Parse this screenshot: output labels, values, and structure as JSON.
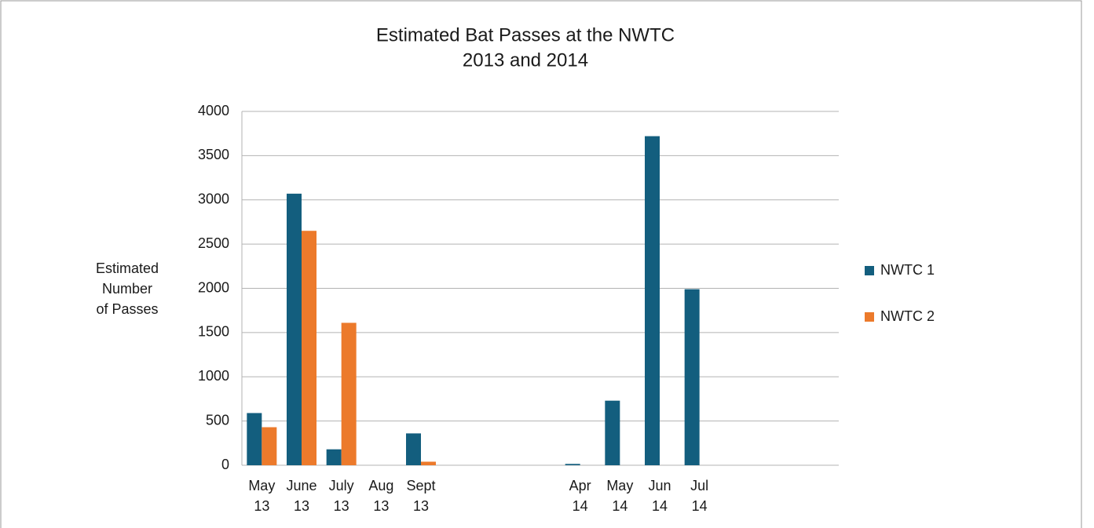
{
  "chart_data": {
    "type": "bar",
    "title": [
      "Estimated Bat Passes at the NWTC",
      "2013 and 2014"
    ],
    "y_label": [
      "Estimated",
      "Number",
      "of Passes"
    ],
    "categories": [
      "May 13",
      "June 13",
      "July 13",
      "Aug 13",
      "Sept 13",
      null,
      null,
      null,
      "Apr 14",
      "May 14",
      "Jun 14",
      "Jul 14",
      null,
      null,
      null
    ],
    "series": [
      {
        "name": "NWTC 1",
        "color": "#135e7e",
        "values": [
          590,
          3070,
          180,
          0,
          360,
          null,
          null,
          null,
          15,
          730,
          3720,
          1990,
          null,
          null,
          null
        ]
      },
      {
        "name": "NWTC 2",
        "color": "#ec7a2b",
        "values": [
          430,
          2650,
          1610,
          0,
          40,
          null,
          null,
          null,
          null,
          null,
          null,
          null,
          null,
          null,
          null
        ]
      }
    ],
    "ylim": [
      0,
      4000
    ],
    "yticks": [
      0,
      500,
      1000,
      1500,
      2000,
      2500,
      3000,
      3500,
      4000
    ],
    "grid": true,
    "legend": "right"
  }
}
